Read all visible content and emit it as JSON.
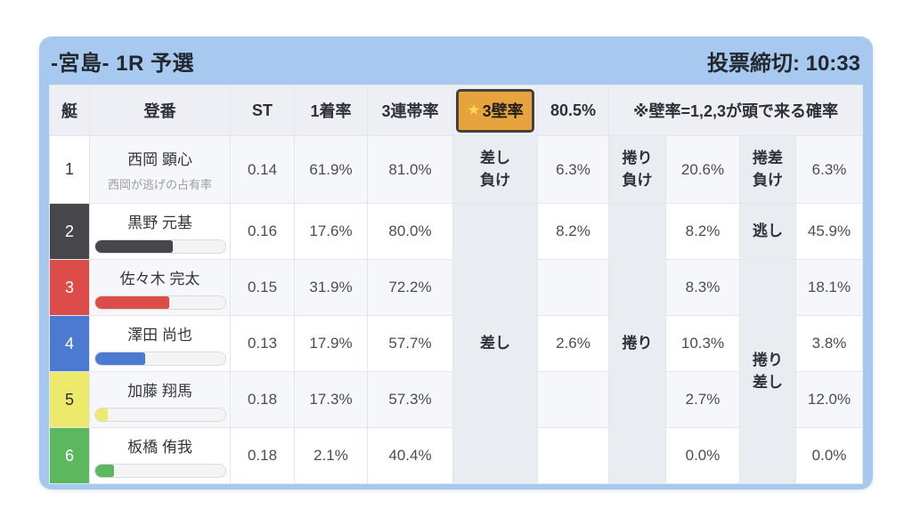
{
  "header": {
    "title": "-宮島- 1R 予選",
    "deadline": "投票締切: 10:33"
  },
  "table": {
    "columns": {
      "boat": "艇",
      "racer": "登番",
      "st": "ST",
      "win1": "1着率",
      "top3": "3連帯率",
      "wall_star": "★",
      "wall": "3壁率",
      "wall_value": "80.5%",
      "note": "※壁率=1,2,3が頭で来る確率"
    },
    "merged_labels": {
      "sashi": "差し",
      "makuri": "捲り",
      "nigashi": "逃し",
      "makuri_sashi_line1": "捲り",
      "makuri_sashi_line2": "差し"
    },
    "rows": [
      {
        "boat": "1",
        "name": "西岡 顕心",
        "subtitle": "西岡が逃げの占有率",
        "st": "0.14",
        "win1": "61.9%",
        "top3": "81.0%",
        "l1a": "差し",
        "l1b": "負け",
        "v1": "6.3%",
        "l2a": "捲り",
        "l2b": "負け",
        "v2": "20.6%",
        "l3a": "捲差",
        "l3b": "負け",
        "v3": "6.3%"
      },
      {
        "boat": "2",
        "name": "黒野 元基",
        "bar_pct": 60,
        "st": "0.16",
        "win1": "17.6%",
        "top3": "80.0%",
        "v1": "8.2%",
        "v2": "8.2%",
        "l3": "逃し",
        "v3": "45.9%"
      },
      {
        "boat": "3",
        "name": "佐々木 完太",
        "bar_pct": 57,
        "st": "0.15",
        "win1": "31.9%",
        "top3": "72.2%",
        "v1": "",
        "v2": "8.3%",
        "v3": "18.1%"
      },
      {
        "boat": "4",
        "name": "澤田 尚也",
        "bar_pct": 39,
        "st": "0.13",
        "win1": "17.9%",
        "top3": "57.7%",
        "v1": "2.6%",
        "v2": "10.3%",
        "v3": "3.8%"
      },
      {
        "boat": "5",
        "name": "加藤 翔馬",
        "bar_pct": 10,
        "st": "0.18",
        "win1": "17.3%",
        "top3": "57.3%",
        "v1": "",
        "v2": "2.7%",
        "v3": "12.0%"
      },
      {
        "boat": "6",
        "name": "板橋 侑我",
        "bar_pct": 15,
        "st": "0.18",
        "win1": "2.1%",
        "top3": "40.4%",
        "v1": "",
        "v2": "0.0%",
        "v3": "0.0%"
      }
    ],
    "boat_colors": {
      "1": "#ffffff",
      "2": "#47474b",
      "3": "#dc4d49",
      "4": "#4c7ad0",
      "5": "#ece96d",
      "6": "#5cb85f"
    }
  },
  "colors": {
    "card_blue": "#a7c9ef",
    "highlight_gold": "#e6a33e",
    "highlight_border": "#454039",
    "star_yellow": "#ffd94f",
    "header_gray": "#edeff4",
    "label_gray": "#e9ecf1",
    "stripe_gray": "#f6f7fa"
  }
}
